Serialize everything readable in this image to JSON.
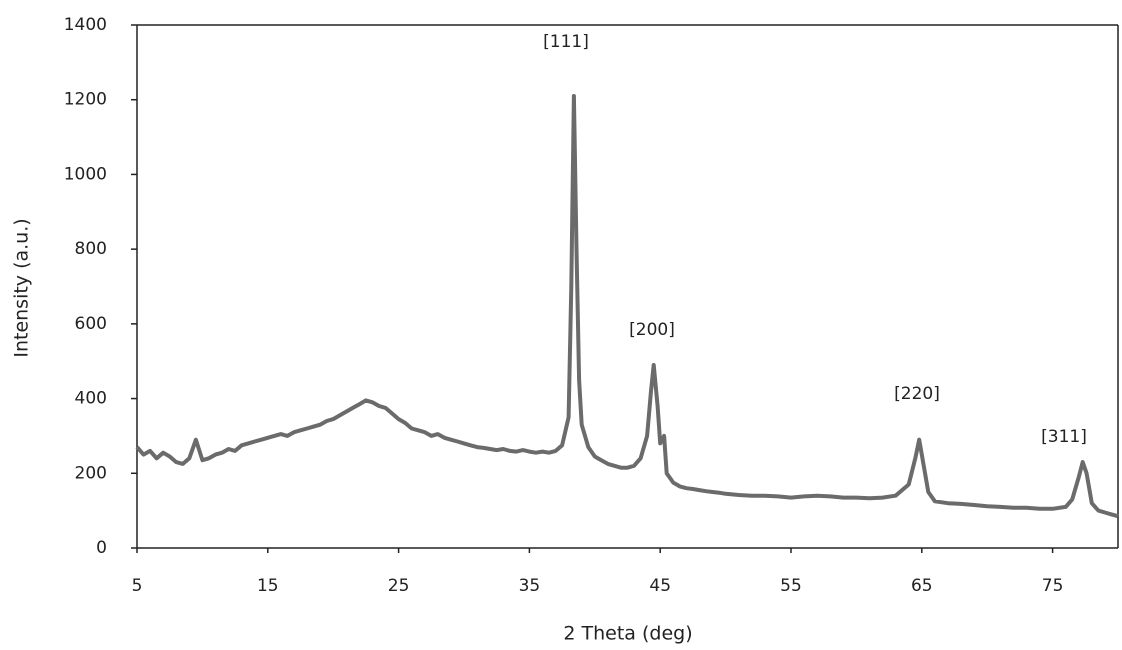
{
  "chart_data": {
    "type": "line",
    "x_label": "2 Theta (deg)",
    "y_label": "Intensity (a.u.)",
    "color": "#6b6b6b",
    "x": [
      5,
      5.5,
      6,
      6.5,
      7,
      7.5,
      8,
      8.5,
      9,
      9.5,
      10,
      10.5,
      11,
      11.5,
      12,
      12.5,
      13,
      13.5,
      14,
      14.5,
      15,
      15.5,
      16,
      16.5,
      17,
      17.5,
      18,
      18.5,
      19,
      19.5,
      20,
      20.5,
      21,
      21.5,
      22,
      22.5,
      23,
      23.5,
      24,
      24.5,
      25,
      25.5,
      26,
      26.5,
      27,
      27.5,
      28,
      28.5,
      29,
      29.5,
      30,
      30.5,
      31,
      31.5,
      32,
      32.5,
      33,
      33.5,
      34,
      34.5,
      35,
      35.5,
      36,
      36.5,
      37,
      37.5,
      38,
      38.2,
      38.4,
      38.6,
      38.8,
      39,
      39.5,
      40,
      40.5,
      41,
      41.5,
      42,
      42.5,
      43,
      43.5,
      44,
      44.3,
      44.5,
      44.8,
      45,
      45.3,
      45.5,
      46,
      46.5,
      47,
      47.5,
      48,
      48.5,
      49,
      49.5,
      50,
      51,
      52,
      53,
      54,
      55,
      56,
      57,
      58,
      59,
      60,
      61,
      62,
      63,
      64,
      64.5,
      64.8,
      65.1,
      65.5,
      66,
      67,
      68,
      69,
      70,
      71,
      72,
      73,
      74,
      75,
      76,
      76.5,
      77,
      77.3,
      77.6,
      78,
      78.5,
      79,
      79.5,
      80
    ],
    "values": [
      270,
      250,
      260,
      240,
      255,
      245,
      230,
      225,
      240,
      290,
      235,
      240,
      250,
      255,
      265,
      260,
      275,
      280,
      285,
      290,
      295,
      300,
      305,
      300,
      310,
      315,
      320,
      325,
      330,
      340,
      345,
      355,
      365,
      375,
      385,
      395,
      390,
      380,
      375,
      360,
      345,
      335,
      320,
      315,
      310,
      300,
      305,
      295,
      290,
      285,
      280,
      275,
      270,
      268,
      265,
      262,
      265,
      260,
      258,
      262,
      258,
      255,
      258,
      255,
      260,
      275,
      350,
      700,
      1210,
      800,
      450,
      330,
      270,
      245,
      235,
      225,
      220,
      215,
      215,
      220,
      240,
      300,
      420,
      490,
      380,
      280,
      300,
      200,
      175,
      165,
      160,
      158,
      155,
      152,
      150,
      148,
      145,
      142,
      140,
      140,
      138,
      135,
      138,
      140,
      138,
      135,
      135,
      133,
      135,
      140,
      170,
      240,
      290,
      230,
      150,
      125,
      120,
      118,
      115,
      112,
      110,
      108,
      108,
      105,
      105,
      110,
      130,
      190,
      230,
      200,
      120,
      100,
      95,
      90,
      85
    ],
    "xlim": [
      5,
      80
    ],
    "xticks": [
      5,
      15,
      25,
      35,
      45,
      55,
      65,
      75
    ],
    "ylim": [
      0,
      1400
    ],
    "yticks": [
      0,
      200,
      400,
      600,
      800,
      1000,
      1200,
      1400
    ],
    "annotations": [
      "[111]",
      "[200]",
      "[220]",
      "[311]"
    ]
  }
}
